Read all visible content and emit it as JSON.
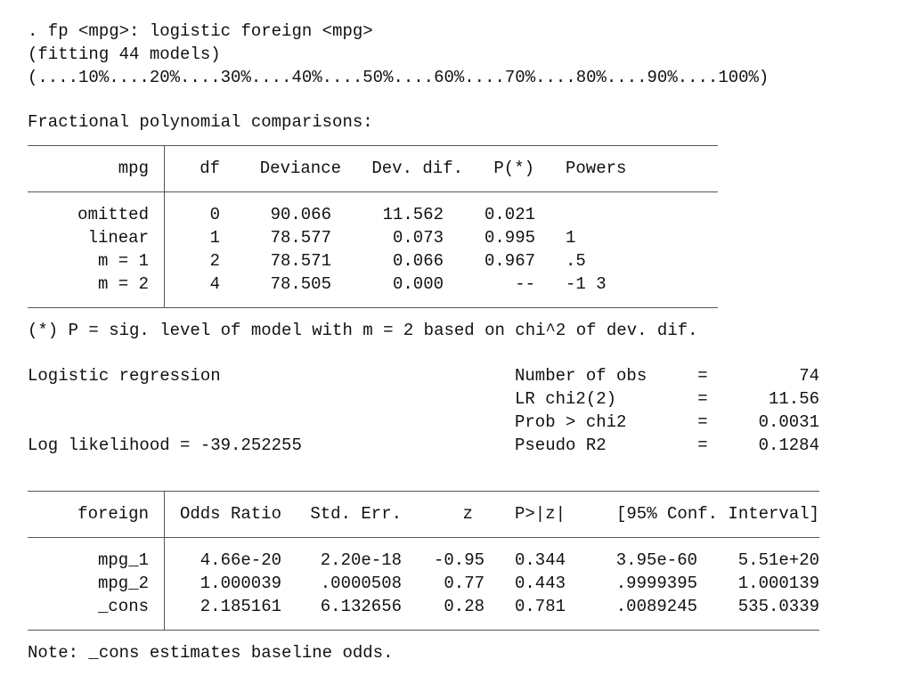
{
  "command": ". fp <mpg>: logistic foreign <mpg>",
  "fitting": "(fitting 44 models)",
  "progress": "(....10%....20%....30%....40%....50%....60%....70%....80%....90%....100%)",
  "comparisons_title": "Fractional polynomial comparisons:",
  "table1": {
    "headers": [
      "mpg",
      "df",
      "Deviance",
      "Dev. dif.",
      "P(*)",
      "Powers"
    ],
    "rows": [
      [
        "omitted",
        "0",
        "90.066",
        "11.562",
        "0.021"
      ],
      [
        "linear",
        "1",
        "78.577",
        "0.073",
        "0.995",
        "1"
      ],
      [
        "m = 1",
        "2",
        "78.571",
        "0.066",
        "0.967",
        ".5"
      ],
      [
        "m = 2",
        "4",
        "78.505",
        "0.000",
        "--",
        "-1 3"
      ]
    ]
  },
  "footnote": "(*) P = sig. level of model with m = 2 based on chi^2 of dev. dif.",
  "summary": {
    "title": "Logistic regression",
    "log_likelihood": "Log likelihood = -39.252255",
    "stats": [
      {
        "label": "Number of obs",
        "sign": "=",
        "value": "74"
      },
      {
        "label": "LR chi2(2)",
        "sign": "=",
        "value": "11.56"
      },
      {
        "label": "Prob > chi2",
        "sign": "=",
        "value": "0.0031"
      },
      {
        "label": "Pseudo R2",
        "sign": "=",
        "value": "0.1284"
      }
    ]
  },
  "table2": {
    "headers": [
      "foreign",
      "Odds Ratio",
      "Std. Err.",
      "z",
      "P>|z|",
      "[95% Conf. Interval]"
    ],
    "rows": [
      [
        "mpg_1",
        "4.66e-20",
        "2.20e-18",
        "-0.95",
        "0.344",
        "3.95e-60",
        "5.51e+20"
      ],
      [
        "mpg_2",
        "1.000039",
        ".0000508",
        "0.77",
        "0.443",
        ".9999395",
        "1.000139"
      ],
      [
        "_cons",
        "2.185161",
        "6.132656",
        "0.28",
        "0.781",
        ".0089245",
        "535.0339"
      ]
    ]
  },
  "note": "Note: _cons estimates baseline odds."
}
